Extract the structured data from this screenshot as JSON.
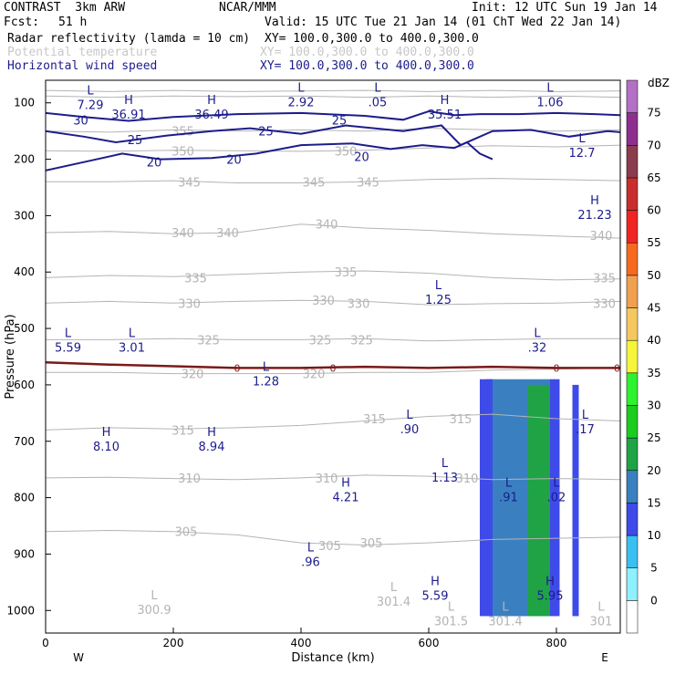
{
  "header": {
    "model": "CONTRAST  3km ARW",
    "center": "NCAR/MMM",
    "init": "Init: 12 UTC Sun 19 Jan 14",
    "fcst_label": "Fcst:",
    "fcst_value": "51 h",
    "valid": "Valid: 15 UTC Tue 21 Jan 14 (01 ChT Wed 22 Jan 14)"
  },
  "fields": [
    {
      "name": "Radar reflectivity (lamda = 10 cm)",
      "xy": "XY= 100.0,300.0 to 400.0,300.0",
      "color": "#000000"
    },
    {
      "name": "Potential temperature",
      "xy": "XY= 100.0,300.0 to 400.0,300.0",
      "color": "#c8c8c8"
    },
    {
      "name": "Horizontal wind speed",
      "xy": "XY= 100.0,300.0 to 400.0,300.0",
      "color": "#1c1c8c"
    }
  ],
  "chart_data": {
    "type": "cross-section",
    "xlabel": "Distance (km)",
    "ylabel": "Pressure (hPa)",
    "xlim": [
      0,
      900
    ],
    "ylim": [
      1040,
      60
    ],
    "x_ticks": [
      0,
      200,
      400,
      600,
      800
    ],
    "y_ticks": [
      100,
      200,
      300,
      400,
      500,
      600,
      700,
      800,
      900,
      1000
    ],
    "west_label": "W",
    "east_label": "E",
    "colorbar": {
      "unit": "dBZ",
      "levels": [
        0,
        5,
        10,
        15,
        20,
        25,
        30,
        35,
        40,
        45,
        50,
        55,
        60,
        65,
        70,
        75
      ],
      "colors": [
        "#ffffff",
        "#8ff0ff",
        "#39c0f0",
        "#3f4be8",
        "#3a80c0",
        "#1fa344",
        "#1bcd1f",
        "#2df22f",
        "#f5f53a",
        "#f5c85f",
        "#f0a050",
        "#f56a1f",
        "#f02424",
        "#c92e2e",
        "#8b3c4e",
        "#8e2f8e",
        "#b370c4"
      ]
    },
    "reflectivity_bands": [
      {
        "x": [
          690,
          790
        ],
        "p": [
          590,
          1010
        ],
        "dbz": 15
      },
      {
        "x": [
          755,
          790
        ],
        "p": [
          600,
          1010
        ],
        "dbz": 20
      },
      {
        "x": [
          680,
          700
        ],
        "p": [
          590,
          1010
        ],
        "dbz": 10
      },
      {
        "x": [
          790,
          805
        ],
        "p": [
          590,
          1010
        ],
        "dbz": 10
      },
      {
        "x": [
          825,
          835
        ],
        "p": [
          600,
          1010
        ],
        "dbz": 10
      }
    ],
    "theta_labels": [
      {
        "x": 215,
        "p": 150,
        "text": "355"
      },
      {
        "x": 215,
        "p": 185,
        "text": "350"
      },
      {
        "x": 470,
        "p": 185,
        "text": "350"
      },
      {
        "x": 225,
        "p": 240,
        "text": "345"
      },
      {
        "x": 420,
        "p": 240,
        "text": "345"
      },
      {
        "x": 505,
        "p": 240,
        "text": "345"
      },
      {
        "x": 215,
        "p": 330,
        "text": "340"
      },
      {
        "x": 285,
        "p": 330,
        "text": "340"
      },
      {
        "x": 440,
        "p": 315,
        "text": "340"
      },
      {
        "x": 870,
        "p": 335,
        "text": "340"
      },
      {
        "x": 235,
        "p": 410,
        "text": "335"
      },
      {
        "x": 470,
        "p": 400,
        "text": "335"
      },
      {
        "x": 875,
        "p": 410,
        "text": "335"
      },
      {
        "x": 225,
        "p": 455,
        "text": "330"
      },
      {
        "x": 435,
        "p": 450,
        "text": "330"
      },
      {
        "x": 490,
        "p": 455,
        "text": "330"
      },
      {
        "x": 875,
        "p": 455,
        "text": "330"
      },
      {
        "x": 255,
        "p": 520,
        "text": "325"
      },
      {
        "x": 430,
        "p": 520,
        "text": "325"
      },
      {
        "x": 495,
        "p": 520,
        "text": "325"
      },
      {
        "x": 230,
        "p": 580,
        "text": "320"
      },
      {
        "x": 420,
        "p": 580,
        "text": "320"
      },
      {
        "x": 215,
        "p": 680,
        "text": "315"
      },
      {
        "x": 515,
        "p": 660,
        "text": "315"
      },
      {
        "x": 650,
        "p": 660,
        "text": "315"
      },
      {
        "x": 225,
        "p": 765,
        "text": "310"
      },
      {
        "x": 440,
        "p": 765,
        "text": "310"
      },
      {
        "x": 660,
        "p": 765,
        "text": "310"
      },
      {
        "x": 220,
        "p": 860,
        "text": "305"
      },
      {
        "x": 445,
        "p": 885,
        "text": "305"
      },
      {
        "x": 510,
        "p": 880,
        "text": "305"
      }
    ],
    "wind_labels": [
      {
        "x": 55,
        "p": 130,
        "text": "30"
      },
      {
        "x": 140,
        "p": 165,
        "text": "25"
      },
      {
        "x": 345,
        "p": 150,
        "text": "25"
      },
      {
        "x": 460,
        "p": 130,
        "text": "25"
      },
      {
        "x": 170,
        "p": 205,
        "text": "20"
      },
      {
        "x": 295,
        "p": 200,
        "text": "20"
      },
      {
        "x": 495,
        "p": 195,
        "text": "20"
      }
    ],
    "wind_contours": [
      {
        "name": "30",
        "x": [
          0,
          60,
          130,
          200,
          300,
          400,
          500,
          560,
          600,
          640,
          680,
          740,
          800,
          860,
          900
        ],
        "p": [
          118,
          125,
          132,
          125,
          120,
          118,
          123,
          130,
          115,
          122,
          120,
          120,
          118,
          120,
          122
        ]
      },
      {
        "name": "25",
        "x": [
          0,
          60,
          110,
          190,
          260,
          320,
          400,
          470,
          560,
          620,
          650,
          700,
          760,
          820,
          880,
          900
        ],
        "p": [
          150,
          160,
          170,
          158,
          150,
          145,
          155,
          140,
          150,
          140,
          175,
          150,
          148,
          160,
          150,
          152
        ]
      },
      {
        "name": "20",
        "x": [
          0,
          60,
          120,
          180,
          260,
          330,
          400,
          480,
          540,
          590,
          640,
          660,
          680,
          700
        ],
        "p": [
          220,
          205,
          190,
          200,
          198,
          190,
          175,
          172,
          182,
          175,
          180,
          170,
          190,
          200
        ]
      }
    ],
    "theta_contours": [
      {
        "name": "355",
        "x": [
          0,
          100,
          200,
          300,
          400,
          500,
          600,
          700,
          800,
          900
        ],
        "p": [
          150,
          152,
          148,
          150,
          148,
          150,
          145,
          148,
          150,
          148
        ]
      },
      {
        "name": "350",
        "x": [
          0,
          100,
          200,
          300,
          400,
          500,
          600,
          700,
          800,
          900
        ],
        "p": [
          185,
          186,
          184,
          185,
          186,
          184,
          180,
          176,
          178,
          175
        ]
      },
      {
        "name": "345",
        "x": [
          0,
          100,
          200,
          300,
          400,
          500,
          600,
          700,
          800,
          900
        ],
        "p": [
          240,
          240,
          238,
          242,
          242,
          240,
          236,
          234,
          236,
          238
        ]
      },
      {
        "name": "340",
        "x": [
          0,
          100,
          200,
          300,
          400,
          500,
          600,
          700,
          800,
          900
        ],
        "p": [
          330,
          328,
          332,
          330,
          315,
          322,
          326,
          332,
          336,
          340
        ]
      },
      {
        "name": "335",
        "x": [
          0,
          100,
          200,
          300,
          400,
          500,
          600,
          700,
          800,
          900
        ],
        "p": [
          410,
          406,
          408,
          404,
          400,
          398,
          402,
          410,
          414,
          412
        ]
      },
      {
        "name": "330",
        "x": [
          0,
          100,
          200,
          300,
          400,
          500,
          600,
          700,
          800,
          900
        ],
        "p": [
          455,
          452,
          455,
          452,
          450,
          452,
          458,
          456,
          455,
          452
        ]
      },
      {
        "name": "325",
        "x": [
          0,
          100,
          200,
          300,
          400,
          500,
          600,
          700,
          800,
          900
        ],
        "p": [
          520,
          520,
          518,
          520,
          520,
          518,
          522,
          520,
          518,
          518
        ]
      },
      {
        "name": "320",
        "x": [
          0,
          100,
          200,
          300,
          400,
          500,
          600,
          700,
          800,
          900
        ],
        "p": [
          578,
          578,
          580,
          580,
          580,
          578,
          578,
          574,
          572,
          570
        ]
      },
      {
        "name": "315",
        "x": [
          0,
          100,
          200,
          300,
          400,
          500,
          600,
          700,
          800,
          900
        ],
        "p": [
          680,
          676,
          678,
          676,
          672,
          664,
          656,
          652,
          660,
          664
        ]
      },
      {
        "name": "310",
        "x": [
          0,
          100,
          200,
          300,
          400,
          500,
          600,
          700,
          800,
          900
        ],
        "p": [
          765,
          764,
          766,
          768,
          765,
          760,
          762,
          768,
          766,
          768
        ]
      },
      {
        "name": "305",
        "x": [
          0,
          100,
          200,
          300,
          400,
          500,
          600,
          700,
          800,
          900
        ],
        "p": [
          860,
          858,
          860,
          866,
          880,
          884,
          880,
          874,
          872,
          870
        ]
      },
      {
        "name": "top",
        "x": [
          0,
          100,
          200,
          300,
          400,
          500,
          600,
          700,
          800,
          900
        ],
        "p": [
          78,
          80,
          78,
          80,
          79,
          78,
          80,
          78,
          80,
          79
        ]
      },
      {
        "name": "top2",
        "x": [
          0,
          100,
          200,
          300,
          400,
          500,
          600,
          700,
          800,
          900
        ],
        "p": [
          88,
          90,
          88,
          89,
          88,
          90,
          88,
          90,
          88,
          90
        ]
      }
    ],
    "zero_line": {
      "label": "0",
      "x": [
        0,
        100,
        200,
        300,
        400,
        500,
        600,
        700,
        800,
        900
      ],
      "p": [
        560,
        564,
        567,
        570,
        570,
        568,
        570,
        568,
        570,
        570
      ]
    },
    "extrema_wind": [
      {
        "x": 70,
        "p": 95,
        "type": "L",
        "value": "7.29"
      },
      {
        "x": 130,
        "p": 112,
        "type": "H",
        "value": "36.91"
      },
      {
        "x": 260,
        "p": 112,
        "type": "H",
        "value": "36.49"
      },
      {
        "x": 400,
        "p": 90,
        "type": "L",
        "value": "2.92"
      },
      {
        "x": 520,
        "p": 90,
        "type": "L",
        "value": ".05"
      },
      {
        "x": 625,
        "p": 112,
        "type": "H",
        "value": "35.51"
      },
      {
        "x": 790,
        "p": 90,
        "type": "L",
        "value": "1.06"
      },
      {
        "x": 840,
        "p": 180,
        "type": "L",
        "value": "12.7"
      },
      {
        "x": 860,
        "p": 290,
        "type": "H",
        "value": "21.23"
      },
      {
        "x": 615,
        "p": 440,
        "type": "L",
        "value": "1.25"
      },
      {
        "x": 35,
        "p": 525,
        "type": "L",
        "value": "5.59"
      },
      {
        "x": 135,
        "p": 525,
        "type": "L",
        "value": "3.01"
      },
      {
        "x": 770,
        "p": 525,
        "type": "L",
        "value": ".32"
      },
      {
        "x": 345,
        "p": 585,
        "type": "L",
        "value": "1.28"
      },
      {
        "x": 570,
        "p": 670,
        "type": "L",
        "value": ".90"
      },
      {
        "x": 845,
        "p": 670,
        "type": "L",
        "value": ".17"
      },
      {
        "x": 95,
        "p": 700,
        "type": "H",
        "value": "8.10"
      },
      {
        "x": 260,
        "p": 700,
        "type": "H",
        "value": "8.94"
      },
      {
        "x": 625,
        "p": 755,
        "type": "L",
        "value": "1.13"
      },
      {
        "x": 470,
        "p": 790,
        "type": "H",
        "value": "4.21"
      },
      {
        "x": 725,
        "p": 790,
        "type": "L",
        "value": ".91"
      },
      {
        "x": 800,
        "p": 790,
        "type": "L",
        "value": ".02"
      },
      {
        "x": 415,
        "p": 905,
        "type": "L",
        "value": ".96"
      },
      {
        "x": 610,
        "p": 965,
        "type": "H",
        "value": "5.59"
      },
      {
        "x": 790,
        "p": 965,
        "type": "H",
        "value": "5.95"
      }
    ],
    "extrema_theta": [
      {
        "x": 545,
        "p": 975,
        "type": "L",
        "value": "301.4"
      },
      {
        "x": 170,
        "p": 990,
        "type": "L",
        "value": "300.9"
      },
      {
        "x": 635,
        "p": 1010,
        "type": "L",
        "value": "301.5"
      },
      {
        "x": 720,
        "p": 1010,
        "type": "L",
        "value": "301.4"
      },
      {
        "x": 870,
        "p": 1010,
        "type": "L",
        "value": "301"
      }
    ]
  }
}
